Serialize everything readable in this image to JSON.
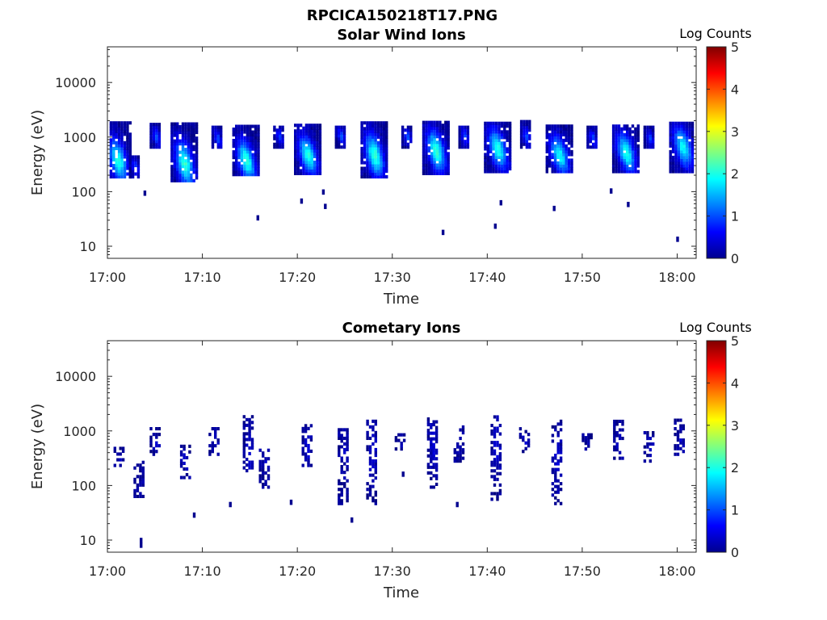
{
  "figure_title": "RPCICA150218T17.PNG",
  "chart_data": [
    {
      "type": "heatmap",
      "title": "Solar Wind Ions",
      "xlabel": "Time",
      "ylabel": "Energy (eV)",
      "x_ticks": [
        "17:00",
        "17:10",
        "17:20",
        "17:30",
        "17:40",
        "17:50",
        "18:00"
      ],
      "x_tick_minutes": [
        0,
        10,
        20,
        30,
        40,
        50,
        60
      ],
      "xlim_minutes": [
        0,
        62
      ],
      "y_scale": "log",
      "ylim": [
        6,
        45000
      ],
      "y_ticks": [
        "10",
        "100",
        "1000",
        "10000"
      ],
      "y_tick_values": [
        10,
        100,
        1000,
        10000
      ],
      "colorbar": {
        "label": "Log Counts",
        "range": [
          0,
          5
        ],
        "ticks": [
          "0",
          "1",
          "2",
          "3",
          "4",
          "5"
        ]
      },
      "clusters": [
        {
          "t": 1.0,
          "e_lo": 200,
          "e_hi": 2000,
          "e_peak": 400,
          "peak": 2.0
        },
        {
          "t": 2.8,
          "e_lo": 200,
          "e_hi": 500,
          "e_peak": 300,
          "peak": 1.0
        },
        {
          "t": 5.0,
          "e_lo": 700,
          "e_hi": 1900,
          "e_peak": 1100,
          "peak": 1.0
        },
        {
          "t": 8.0,
          "e_lo": 170,
          "e_hi": 1900,
          "e_peak": 350,
          "peak": 2.1
        },
        {
          "t": 11.5,
          "e_lo": 700,
          "e_hi": 1800,
          "e_peak": 1000,
          "peak": 1.0
        },
        {
          "t": 14.5,
          "e_lo": 220,
          "e_hi": 1800,
          "e_peak": 400,
          "peak": 2.1
        },
        {
          "t": 18.0,
          "e_lo": 700,
          "e_hi": 1700,
          "e_peak": 1100,
          "peak": 0.9
        },
        {
          "t": 21.0,
          "e_lo": 230,
          "e_hi": 1800,
          "e_peak": 500,
          "peak": 2.0
        },
        {
          "t": 24.5,
          "e_lo": 700,
          "e_hi": 1800,
          "e_peak": 1100,
          "peak": 1.0
        },
        {
          "t": 28.0,
          "e_lo": 200,
          "e_hi": 2000,
          "e_peak": 500,
          "peak": 2.1
        },
        {
          "t": 31.5,
          "e_lo": 700,
          "e_hi": 1700,
          "e_peak": 1100,
          "peak": 1.0
        },
        {
          "t": 34.5,
          "e_lo": 230,
          "e_hi": 2100,
          "e_peak": 600,
          "peak": 2.1
        },
        {
          "t": 37.5,
          "e_lo": 700,
          "e_hi": 1800,
          "e_peak": 1100,
          "peak": 1.0
        },
        {
          "t": 41.0,
          "e_lo": 250,
          "e_hi": 2000,
          "e_peak": 650,
          "peak": 2.0
        },
        {
          "t": 44.0,
          "e_lo": 700,
          "e_hi": 2100,
          "e_peak": 1100,
          "peak": 1.0
        },
        {
          "t": 47.5,
          "e_lo": 250,
          "e_hi": 1800,
          "e_peak": 500,
          "peak": 1.9
        },
        {
          "t": 51.0,
          "e_lo": 700,
          "e_hi": 1800,
          "e_peak": 1000,
          "peak": 1.0
        },
        {
          "t": 54.5,
          "e_lo": 250,
          "e_hi": 1900,
          "e_peak": 550,
          "peak": 2.0
        },
        {
          "t": 57.0,
          "e_lo": 700,
          "e_hi": 1800,
          "e_peak": 1000,
          "peak": 0.9
        },
        {
          "t": 60.5,
          "e_lo": 250,
          "e_hi": 2100,
          "e_peak": 700,
          "peak": 1.9
        }
      ],
      "outliers": [
        {
          "t": 3.8,
          "e": 105
        },
        {
          "t": 15.7,
          "e": 37
        },
        {
          "t": 22.6,
          "e": 110
        },
        {
          "t": 22.8,
          "e": 60
        },
        {
          "t": 35.2,
          "e": 20
        },
        {
          "t": 40.7,
          "e": 26
        },
        {
          "t": 41.3,
          "e": 70
        },
        {
          "t": 46.9,
          "e": 55
        },
        {
          "t": 54.7,
          "e": 65
        },
        {
          "t": 59.9,
          "e": 15
        },
        {
          "t": 52.9,
          "e": 115
        },
        {
          "t": 20.3,
          "e": 75
        }
      ]
    },
    {
      "type": "heatmap",
      "title": "Cometary Ions",
      "xlabel": "Time",
      "ylabel": "Energy (eV)",
      "x_ticks": [
        "17:00",
        "17:10",
        "17:20",
        "17:30",
        "17:40",
        "17:50",
        "18:00"
      ],
      "x_tick_minutes": [
        0,
        10,
        20,
        30,
        40,
        50,
        60
      ],
      "xlim_minutes": [
        0,
        62
      ],
      "y_scale": "log",
      "ylim": [
        6,
        45000
      ],
      "y_ticks": [
        "10",
        "100",
        "1000",
        "10000"
      ],
      "y_tick_values": [
        10,
        100,
        1000,
        10000
      ],
      "colorbar": {
        "label": "Log Counts",
        "range": [
          0,
          5
        ],
        "ticks": [
          "0",
          "1",
          "2",
          "3",
          "4",
          "5"
        ]
      },
      "clusters": [
        {
          "t": 1.2,
          "e_lo": 250,
          "e_hi": 550,
          "e_peak": 350,
          "peak": 0.3
        },
        {
          "t": 3.3,
          "e_lo": 60,
          "e_hi": 300,
          "e_peak": 120,
          "peak": 0.2
        },
        {
          "t": 5.0,
          "e_lo": 400,
          "e_hi": 1300,
          "e_peak": 600,
          "peak": 0.3
        },
        {
          "t": 8.2,
          "e_lo": 150,
          "e_hi": 600,
          "e_peak": 300,
          "peak": 0.4
        },
        {
          "t": 11.2,
          "e_lo": 400,
          "e_hi": 1300,
          "e_peak": 600,
          "peak": 0.3
        },
        {
          "t": 14.8,
          "e_lo": 200,
          "e_hi": 2000,
          "e_peak": 400,
          "peak": 0.4
        },
        {
          "t": 16.5,
          "e_lo": 100,
          "e_hi": 500,
          "e_peak": 300,
          "peak": 0.3
        },
        {
          "t": 21.0,
          "e_lo": 250,
          "e_hi": 1500,
          "e_peak": 500,
          "peak": 0.4
        },
        {
          "t": 24.8,
          "e_lo": 50,
          "e_hi": 1300,
          "e_peak": 500,
          "peak": 0.3
        },
        {
          "t": 27.8,
          "e_lo": 50,
          "e_hi": 1700,
          "e_peak": 500,
          "peak": 0.4
        },
        {
          "t": 30.8,
          "e_lo": 500,
          "e_hi": 1000,
          "e_peak": 700,
          "peak": 0.3
        },
        {
          "t": 34.2,
          "e_lo": 100,
          "e_hi": 1800,
          "e_peak": 600,
          "peak": 0.4
        },
        {
          "t": 37.0,
          "e_lo": 300,
          "e_hi": 1300,
          "e_peak": 700,
          "peak": 0.3
        },
        {
          "t": 40.9,
          "e_lo": 60,
          "e_hi": 2000,
          "e_peak": 600,
          "peak": 0.4
        },
        {
          "t": 43.9,
          "e_lo": 450,
          "e_hi": 1200,
          "e_peak": 700,
          "peak": 0.3
        },
        {
          "t": 47.3,
          "e_lo": 50,
          "e_hi": 1700,
          "e_peak": 300,
          "peak": 0.4
        },
        {
          "t": 50.5,
          "e_lo": 500,
          "e_hi": 1000,
          "e_peak": 700,
          "peak": 0.2
        },
        {
          "t": 53.8,
          "e_lo": 300,
          "e_hi": 1700,
          "e_peak": 600,
          "peak": 0.3
        },
        {
          "t": 57.0,
          "e_lo": 300,
          "e_hi": 1000,
          "e_peak": 600,
          "peak": 0.3
        },
        {
          "t": 60.2,
          "e_lo": 400,
          "e_hi": 1700,
          "e_peak": 700,
          "peak": 0.3
        }
      ],
      "outliers": [
        {
          "t": 3.4,
          "e": 9
        },
        {
          "t": 3.4,
          "e": 11
        },
        {
          "t": 9.0,
          "e": 32
        },
        {
          "t": 25.6,
          "e": 26
        },
        {
          "t": 19.2,
          "e": 55
        },
        {
          "t": 36.7,
          "e": 50
        },
        {
          "t": 12.8,
          "e": 50
        },
        {
          "t": 31.0,
          "e": 180
        }
      ]
    }
  ]
}
